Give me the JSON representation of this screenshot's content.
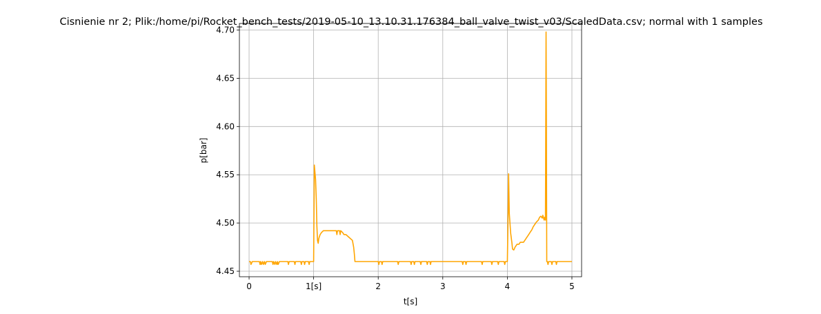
{
  "chart_data": {
    "type": "line",
    "title": "Cisnienie nr 2; Plik:/home/pi/Rocket_bench_tests/2019-05-10_13.10.31.176384_ball_valve_twist_v03/ScaledData.csv; normal with 1 samples",
    "xlabel": "t[s]",
    "ylabel": "p[bar]",
    "xlim": [
      -0.15,
      5.15
    ],
    "ylim": [
      4.4443,
      4.7068
    ],
    "xticks": [
      0,
      1,
      2,
      3,
      4,
      5
    ],
    "xtick_labels": [
      "0",
      "1[s]",
      "2",
      "3",
      "4",
      "5"
    ],
    "yticks": [
      4.45,
      4.5,
      4.55,
      4.6,
      4.65,
      4.7
    ],
    "ytick_labels": [
      "4.45",
      "4.50",
      "4.55",
      "4.60",
      "4.65",
      "4.70"
    ],
    "grid": true,
    "legend": "none",
    "series": [
      {
        "color": "#ffa500",
        "x": [
          0,
          0.02,
          0.03,
          0.05,
          0.06,
          0.16,
          0.17,
          0.18,
          0.19,
          0.21,
          0.22,
          0.24,
          0.25,
          0.27,
          0.28,
          0.36,
          0.37,
          0.38,
          0.4,
          0.41,
          0.43,
          0.44,
          0.45,
          0.47,
          0.48,
          0.6,
          0.61,
          0.62,
          0.7,
          0.71,
          0.72,
          0.8,
          0.81,
          0.82,
          0.85,
          0.86,
          0.87,
          0.92,
          0.93,
          0.94,
          1.0,
          1.01,
          1.03,
          1.04,
          1.05,
          1.06,
          1.07,
          1.08,
          1.1,
          1.12,
          1.15,
          1.2,
          1.35,
          1.36,
          1.37,
          1.4,
          1.41,
          1.42,
          1.45,
          1.47,
          1.5,
          1.55,
          1.6,
          1.62,
          1.63,
          1.64,
          1.65,
          2.0,
          2.01,
          2.02,
          2.05,
          2.06,
          2.07,
          2.3,
          2.31,
          2.32,
          2.5,
          2.51,
          2.52,
          2.55,
          2.56,
          2.57,
          2.65,
          2.66,
          2.67,
          2.75,
          2.76,
          2.77,
          2.8,
          2.81,
          2.82,
          3.3,
          3.31,
          3.32,
          3.35,
          3.36,
          3.37,
          3.6,
          3.61,
          3.62,
          3.75,
          3.76,
          3.77,
          3.85,
          3.86,
          3.87,
          3.95,
          3.96,
          3.97,
          4.0,
          4.01,
          4.02,
          4.03,
          4.05,
          4.07,
          4.08,
          4.1,
          4.12,
          4.15,
          4.18,
          4.2,
          4.25,
          4.28,
          4.3,
          4.33,
          4.35,
          4.38,
          4.4,
          4.43,
          4.45,
          4.48,
          4.5,
          4.52,
          4.54,
          4.55,
          4.57,
          4.58,
          4.59,
          4.6,
          4.605,
          4.61,
          4.62,
          4.63,
          4.64,
          4.65,
          4.68,
          4.69,
          4.7,
          4.75,
          4.76,
          4.77,
          4.8,
          5.0
        ],
        "y": [
          4.46,
          4.46,
          4.457,
          4.46,
          4.46,
          4.46,
          4.457,
          4.46,
          4.457,
          4.46,
          4.457,
          4.46,
          4.457,
          4.46,
          4.46,
          4.46,
          4.457,
          4.46,
          4.457,
          4.46,
          4.457,
          4.46,
          4.457,
          4.46,
          4.46,
          4.46,
          4.457,
          4.46,
          4.46,
          4.457,
          4.46,
          4.46,
          4.457,
          4.46,
          4.46,
          4.457,
          4.46,
          4.46,
          4.457,
          4.46,
          4.46,
          4.56,
          4.545,
          4.525,
          4.497,
          4.482,
          4.479,
          4.484,
          4.488,
          4.49,
          4.492,
          4.492,
          4.492,
          4.488,
          4.492,
          4.492,
          4.488,
          4.492,
          4.49,
          4.488,
          4.488,
          4.485,
          4.482,
          4.475,
          4.468,
          4.46,
          4.46,
          4.46,
          4.457,
          4.46,
          4.46,
          4.457,
          4.46,
          4.46,
          4.457,
          4.46,
          4.46,
          4.457,
          4.46,
          4.46,
          4.457,
          4.46,
          4.46,
          4.457,
          4.46,
          4.46,
          4.457,
          4.46,
          4.46,
          4.457,
          4.46,
          4.46,
          4.457,
          4.46,
          4.46,
          4.457,
          4.46,
          4.46,
          4.457,
          4.46,
          4.46,
          4.457,
          4.46,
          4.46,
          4.457,
          4.46,
          4.46,
          4.457,
          4.46,
          4.46,
          4.5,
          4.551,
          4.51,
          4.49,
          4.48,
          4.473,
          4.472,
          4.475,
          4.478,
          4.478,
          4.48,
          4.48,
          4.483,
          4.485,
          4.488,
          4.49,
          4.493,
          4.496,
          4.499,
          4.501,
          4.503,
          4.506,
          4.507,
          4.505,
          4.508,
          4.503,
          4.506,
          4.503,
          4.698,
          4.6,
          4.46,
          4.46,
          4.457,
          4.46,
          4.46,
          4.46,
          4.457,
          4.46,
          4.46,
          4.457,
          4.46,
          4.46,
          4.46
        ]
      }
    ]
  }
}
